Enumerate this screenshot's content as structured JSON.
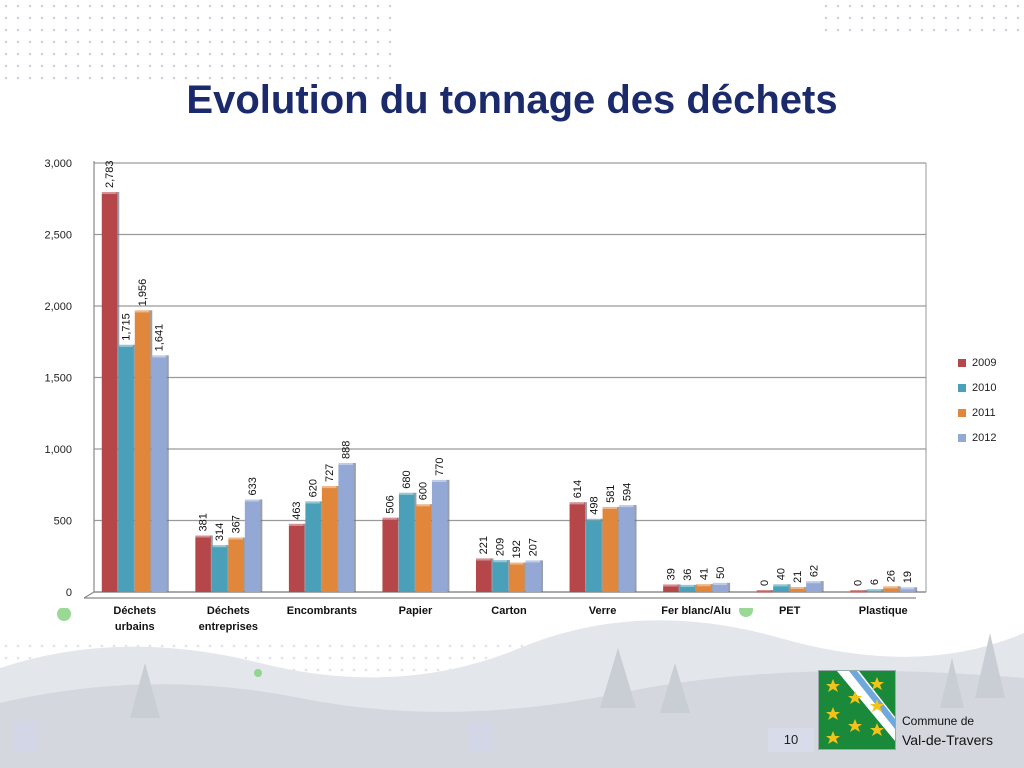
{
  "title": "Evolution du tonnage des déchets",
  "footer": {
    "page_number": "10",
    "logo_line1": "Commune de",
    "logo_line2": "Val-de-Travers"
  },
  "colors": {
    "2009": "#b5474a",
    "2010": "#4aa0b8",
    "2011": "#e0873c",
    "2012": "#94a8d6"
  },
  "chart_data": {
    "type": "bar",
    "title": "",
    "xlabel": "",
    "ylabel": "",
    "ylim": [
      0,
      3000
    ],
    "yticks": [
      "0",
      "500",
      "1,000",
      "1,500",
      "2,000",
      "2,500",
      "3,000"
    ],
    "grid": true,
    "legend_position": "right",
    "categories": [
      "Déchets urbains",
      "Déchets entreprises",
      "Encombrants",
      "Papier",
      "Carton",
      "Verre",
      "Fer blanc/Alu",
      "PET",
      "Plastique"
    ],
    "series": [
      {
        "name": "2009",
        "values": [
          2783,
          381,
          463,
          506,
          221,
          614,
          39,
          0,
          0
        ]
      },
      {
        "name": "2010",
        "values": [
          1715,
          314,
          620,
          680,
          209,
          498,
          36,
          40,
          6
        ]
      },
      {
        "name": "2011",
        "values": [
          1956,
          367,
          727,
          600,
          192,
          581,
          41,
          21,
          26
        ]
      },
      {
        "name": "2012",
        "values": [
          1641,
          633,
          888,
          770,
          207,
          594,
          50,
          62,
          19
        ]
      }
    ]
  }
}
